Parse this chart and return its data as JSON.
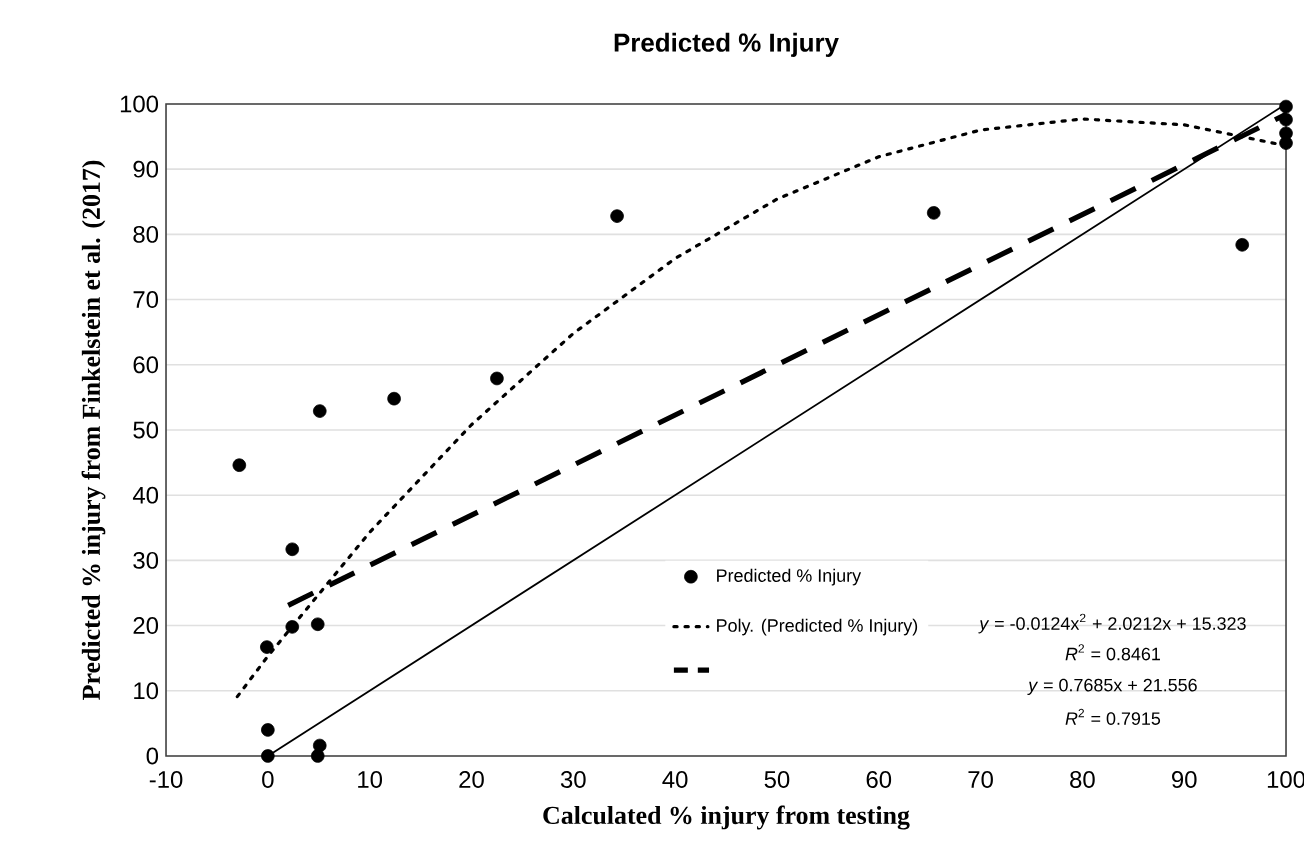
{
  "chart_data": {
    "type": "scatter",
    "title": "Predicted % Injury",
    "xlabel": "Calculated % injury from testing",
    "ylabel": "Predicted % injury from Finkelstein et al. (2017)",
    "xlim": [
      -10,
      100
    ],
    "ylim": [
      0,
      100
    ],
    "xticks": [
      -10,
      0,
      10,
      20,
      30,
      40,
      50,
      60,
      70,
      80,
      90,
      100
    ],
    "yticks": [
      0,
      10,
      20,
      30,
      40,
      50,
      60,
      70,
      80,
      90,
      100
    ],
    "grid": "y",
    "legend": "bottom right",
    "series": [
      {
        "name": "Predicted % Injury",
        "marker": "circle",
        "color": "#000000",
        "x": [
          -2.8,
          5.1,
          12.4,
          22.5,
          34.3,
          2.4,
          2.4,
          4.9,
          -0.1,
          0,
          0,
          5.1,
          4.9,
          65.4,
          95.7,
          100,
          100,
          100,
          100
        ],
        "values": [
          44.6,
          52.9,
          54.8,
          57.9,
          82.8,
          31.7,
          19.8,
          20.2,
          16.7,
          4,
          0,
          1.6,
          0,
          83.3,
          78.4,
          99.6,
          97.6,
          95.5,
          94
        ]
      },
      {
        "name": "Poly. (Predicted % Injury)",
        "type": "line",
        "line_style": "dotted",
        "color": "#000000",
        "x": [
          -3,
          0,
          10,
          20,
          30,
          40,
          50,
          60,
          70,
          80,
          90,
          100
        ],
        "values": [
          9.1,
          15.3,
          34.3,
          50.8,
          64.8,
          76.3,
          85.4,
          91.9,
          96.0,
          97.7,
          96.8,
          93.6
        ]
      },
      {
        "type": "line",
        "line_style": "dashed",
        "color": "#000000",
        "x": [
          2,
          100
        ],
        "values": [
          23.1,
          98.4
        ]
      },
      {
        "type": "line",
        "line_style": "solid",
        "color": "#000000",
        "x": [
          0,
          100
        ],
        "values": [
          0,
          100
        ]
      }
    ],
    "annotations": [
      "*y* = -0.0124x$^{2}$ + 2.0212x + 15.323",
      "*R*$^{2}$ = 0.8461",
      "*y* = 0.7685x + 21.556",
      "*R*$^{2}$ = 0.7915"
    ]
  }
}
